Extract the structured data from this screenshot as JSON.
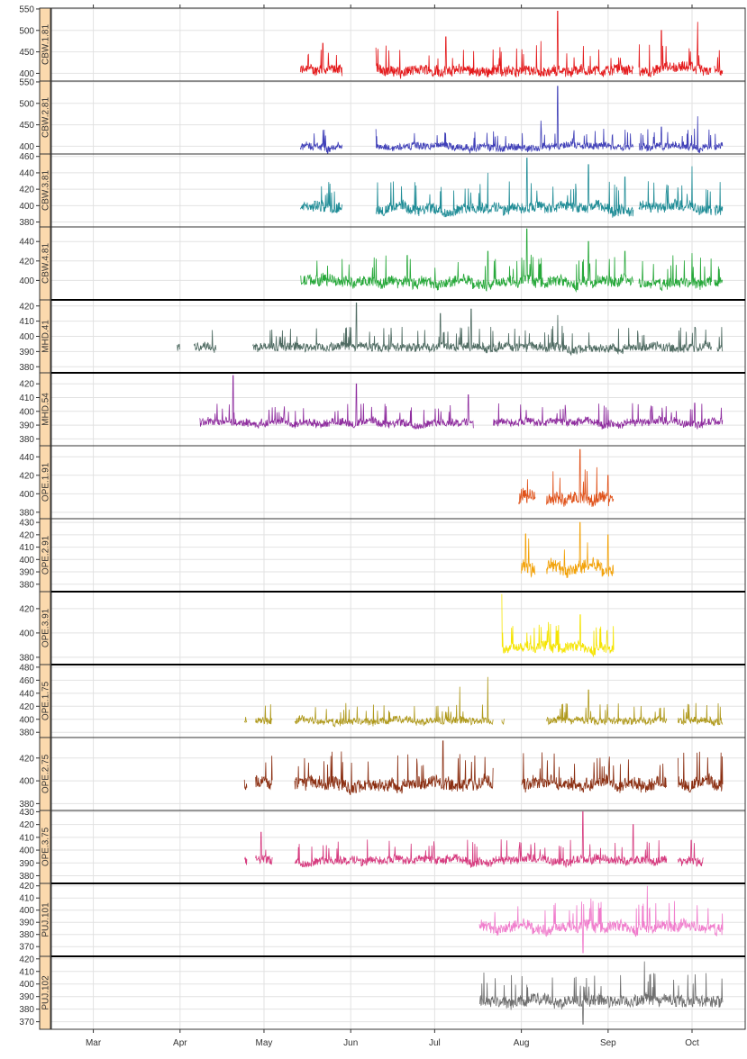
{
  "chart_data": {
    "type": "line",
    "x_axis": {
      "start": "2016-02-15",
      "end": "2016-10-20",
      "ticks": [
        {
          "date": "2016-03-01",
          "label": "Mar"
        },
        {
          "date": "2016-04-01",
          "label": "Apr"
        },
        {
          "date": "2016-05-01",
          "label": "May"
        },
        {
          "date": "2016-06-01",
          "label": "Jun"
        },
        {
          "date": "2016-07-01",
          "label": "Jul"
        },
        {
          "date": "2016-08-01",
          "label": "Aug"
        },
        {
          "date": "2016-09-01",
          "label": "Sep"
        },
        {
          "date": "2016-10-01",
          "label": "Oct"
        }
      ]
    },
    "grid": true,
    "panels": [
      {
        "name": "CBW.1.81",
        "color": "#e41a1c",
        "ylim": [
          382,
          552
        ],
        "yticks": [
          400,
          450,
          500,
          550
        ],
        "segments": [
          [
            "2016-05-14",
            "2016-05-29"
          ],
          [
            "2016-06-10",
            "2016-08-12"
          ],
          [
            "2016-08-12",
            "2016-09-10"
          ],
          [
            "2016-09-12",
            "2016-10-08"
          ],
          [
            "2016-10-09",
            "2016-10-12"
          ]
        ],
        "base": 403,
        "amp": 26,
        "spikes": [
          [
            "2016-05-22",
            470
          ],
          [
            "2016-06-10",
            460
          ],
          [
            "2016-07-05",
            485
          ],
          [
            "2016-08-08",
            475
          ],
          [
            "2016-08-14",
            545
          ],
          [
            "2016-09-20",
            500
          ],
          [
            "2016-10-03",
            520
          ]
        ]
      },
      {
        "name": "CBW.2.81",
        "color": "#4040b8",
        "ylim": [
          382,
          552
        ],
        "yticks": [
          400,
          450,
          500,
          550
        ],
        "segments": [
          [
            "2016-05-14",
            "2016-05-29"
          ],
          [
            "2016-06-10",
            "2016-08-12"
          ],
          [
            "2016-08-12",
            "2016-09-10"
          ],
          [
            "2016-09-12",
            "2016-10-08"
          ],
          [
            "2016-10-09",
            "2016-10-12"
          ]
        ],
        "base": 397,
        "amp": 18,
        "spikes": [
          [
            "2016-06-10",
            440
          ],
          [
            "2016-08-08",
            460
          ],
          [
            "2016-08-14",
            540
          ],
          [
            "2016-09-20",
            445
          ],
          [
            "2016-10-03",
            470
          ]
        ]
      },
      {
        "name": "CBW.3.81",
        "color": "#1f8c96",
        "ylim": [
          374,
          463
        ],
        "yticks": [
          380,
          400,
          420,
          440,
          460
        ],
        "segments": [
          [
            "2016-05-14",
            "2016-05-29"
          ],
          [
            "2016-06-10",
            "2016-08-12"
          ],
          [
            "2016-08-12",
            "2016-09-10"
          ],
          [
            "2016-09-12",
            "2016-10-08"
          ],
          [
            "2016-10-09",
            "2016-10-12"
          ]
        ],
        "base": 395,
        "amp": 14,
        "spikes": [
          [
            "2016-07-20",
            440
          ],
          [
            "2016-08-03",
            458
          ],
          [
            "2016-08-25",
            450
          ],
          [
            "2016-09-07",
            435
          ],
          [
            "2016-10-01",
            448
          ]
        ]
      },
      {
        "name": "CBW.4.81",
        "color": "#27a83a",
        "ylim": [
          380,
          455
        ],
        "yticks": [
          400,
          420,
          440
        ],
        "segments": [
          [
            "2016-05-14",
            "2016-08-12"
          ],
          [
            "2016-08-12",
            "2016-09-10"
          ],
          [
            "2016-09-12",
            "2016-10-08"
          ],
          [
            "2016-10-09",
            "2016-10-12"
          ]
        ],
        "base": 397,
        "amp": 12,
        "spikes": [
          [
            "2016-07-20",
            430
          ],
          [
            "2016-08-03",
            453
          ],
          [
            "2016-08-25",
            440
          ],
          [
            "2016-09-07",
            430
          ],
          [
            "2016-10-01",
            428
          ]
        ]
      },
      {
        "name": "MHD.41",
        "color": "#4f6b62",
        "ylim": [
          376,
          424
        ],
        "yticks": [
          380,
          390,
          400,
          410,
          420
        ],
        "segments": [
          [
            "2016-03-31",
            "2016-04-01"
          ],
          [
            "2016-04-06",
            "2016-04-14"
          ],
          [
            "2016-04-27",
            "2016-10-08"
          ],
          [
            "2016-10-10",
            "2016-10-12"
          ]
        ],
        "base": 392,
        "amp": 6,
        "spikes": [
          [
            "2016-06-03",
            422
          ],
          [
            "2016-07-03",
            415
          ],
          [
            "2016-07-14",
            418
          ],
          [
            "2016-08-14",
            414
          ],
          [
            "2016-10-02",
            406
          ]
        ]
      },
      {
        "name": "MHD.54",
        "color": "#8e2c9e",
        "ylim": [
          375,
          428
        ],
        "yticks": [
          380,
          390,
          400,
          410,
          420
        ],
        "segments": [
          [
            "2016-04-08",
            "2016-07-15"
          ],
          [
            "2016-07-22",
            "2016-10-12"
          ]
        ],
        "base": 391,
        "amp": 6,
        "spikes": [
          [
            "2016-04-20",
            426
          ],
          [
            "2016-06-03",
            420
          ],
          [
            "2016-07-13",
            412
          ],
          [
            "2016-10-02",
            406
          ]
        ]
      },
      {
        "name": "OPE.1.91",
        "color": "#e0521a",
        "ylim": [
          373,
          452
        ],
        "yticks": [
          380,
          400,
          420,
          440
        ],
        "segments": [
          [
            "2016-07-31",
            "2016-08-06"
          ],
          [
            "2016-08-10",
            "2016-09-03"
          ]
        ],
        "base": 393,
        "amp": 15,
        "spikes": [
          [
            "2016-08-22",
            448
          ],
          [
            "2016-09-01",
            420
          ]
        ]
      },
      {
        "name": "OPE.2.91",
        "color": "#f2a20a",
        "ylim": [
          374,
          433
        ],
        "yticks": [
          380,
          390,
          400,
          410,
          420,
          430
        ],
        "segments": [
          [
            "2016-08-01",
            "2016-08-06"
          ],
          [
            "2016-08-10",
            "2016-09-03"
          ]
        ],
        "base": 392,
        "amp": 12,
        "spikes": [
          [
            "2016-08-22",
            430
          ],
          [
            "2016-09-01",
            420
          ]
        ]
      },
      {
        "name": "OPE.3.91",
        "color": "#f5e400",
        "ylim": [
          374,
          434
        ],
        "yticks": [
          380,
          400,
          420
        ],
        "segments": [
          [
            "2016-07-25",
            "2016-09-03"
          ]
        ],
        "base": 387,
        "amp": 9,
        "spikes": [
          [
            "2016-07-25",
            432
          ],
          [
            "2016-08-22",
            415
          ]
        ]
      },
      {
        "name": "OPE.1.75",
        "color": "#b09a1e",
        "ylim": [
          372,
          484
        ],
        "yticks": [
          380,
          400,
          420,
          440,
          460,
          480
        ],
        "segments": [
          [
            "2016-04-24",
            "2016-04-25"
          ],
          [
            "2016-04-28",
            "2016-05-04"
          ],
          [
            "2016-05-12",
            "2016-07-22"
          ],
          [
            "2016-07-25",
            "2016-07-26"
          ],
          [
            "2016-08-10",
            "2016-09-22"
          ],
          [
            "2016-09-26",
            "2016-10-12"
          ]
        ],
        "base": 396,
        "amp": 12,
        "spikes": [
          [
            "2016-07-10",
            450
          ],
          [
            "2016-07-20",
            465
          ],
          [
            "2016-07-24",
            478
          ],
          [
            "2016-08-25",
            445
          ]
        ]
      },
      {
        "name": "OPE.2.75",
        "color": "#8b2f12",
        "ylim": [
          374,
          438
        ],
        "yticks": [
          380,
          400,
          420
        ],
        "segments": [
          [
            "2016-04-24",
            "2016-04-25"
          ],
          [
            "2016-04-28",
            "2016-05-04"
          ],
          [
            "2016-05-12",
            "2016-07-22"
          ],
          [
            "2016-08-01",
            "2016-09-22"
          ],
          [
            "2016-09-26",
            "2016-10-12"
          ]
        ],
        "base": 396,
        "amp": 12,
        "spikes": [
          [
            "2016-07-04",
            435
          ],
          [
            "2016-08-20",
            415
          ],
          [
            "2016-09-26",
            420
          ]
        ]
      },
      {
        "name": "OPE.3.75",
        "color": "#d63b7f",
        "ylim": [
          374,
          431
        ],
        "yticks": [
          380,
          390,
          400,
          410,
          420,
          430
        ],
        "segments": [
          [
            "2016-04-24",
            "2016-04-25"
          ],
          [
            "2016-04-28",
            "2016-05-04"
          ],
          [
            "2016-05-12",
            "2016-09-22"
          ],
          [
            "2016-09-26",
            "2016-10-05"
          ]
        ],
        "base": 391,
        "amp": 7,
        "spikes": [
          [
            "2016-04-30",
            414
          ],
          [
            "2016-08-23",
            430
          ],
          [
            "2016-09-10",
            420
          ]
        ]
      },
      {
        "name": "PUJ.101",
        "color": "#f07ccc",
        "ylim": [
          362,
          422
        ],
        "yticks": [
          370,
          380,
          390,
          400,
          410,
          420
        ],
        "segments": [
          [
            "2016-07-17",
            "2016-10-12"
          ]
        ],
        "base": 385,
        "amp": 10,
        "spikes": [
          [
            "2016-09-15",
            420
          ],
          [
            "2016-08-23",
            365
          ]
        ]
      },
      {
        "name": "PUJ.102",
        "color": "#6f6f6f",
        "ylim": [
          364,
          422
        ],
        "yticks": [
          370,
          380,
          390,
          400,
          410,
          420
        ],
        "segments": [
          [
            "2016-07-17",
            "2016-10-12"
          ]
        ],
        "base": 385,
        "amp": 10,
        "spikes": [
          [
            "2016-09-14",
            418
          ],
          [
            "2016-08-23",
            368
          ]
        ]
      }
    ]
  }
}
